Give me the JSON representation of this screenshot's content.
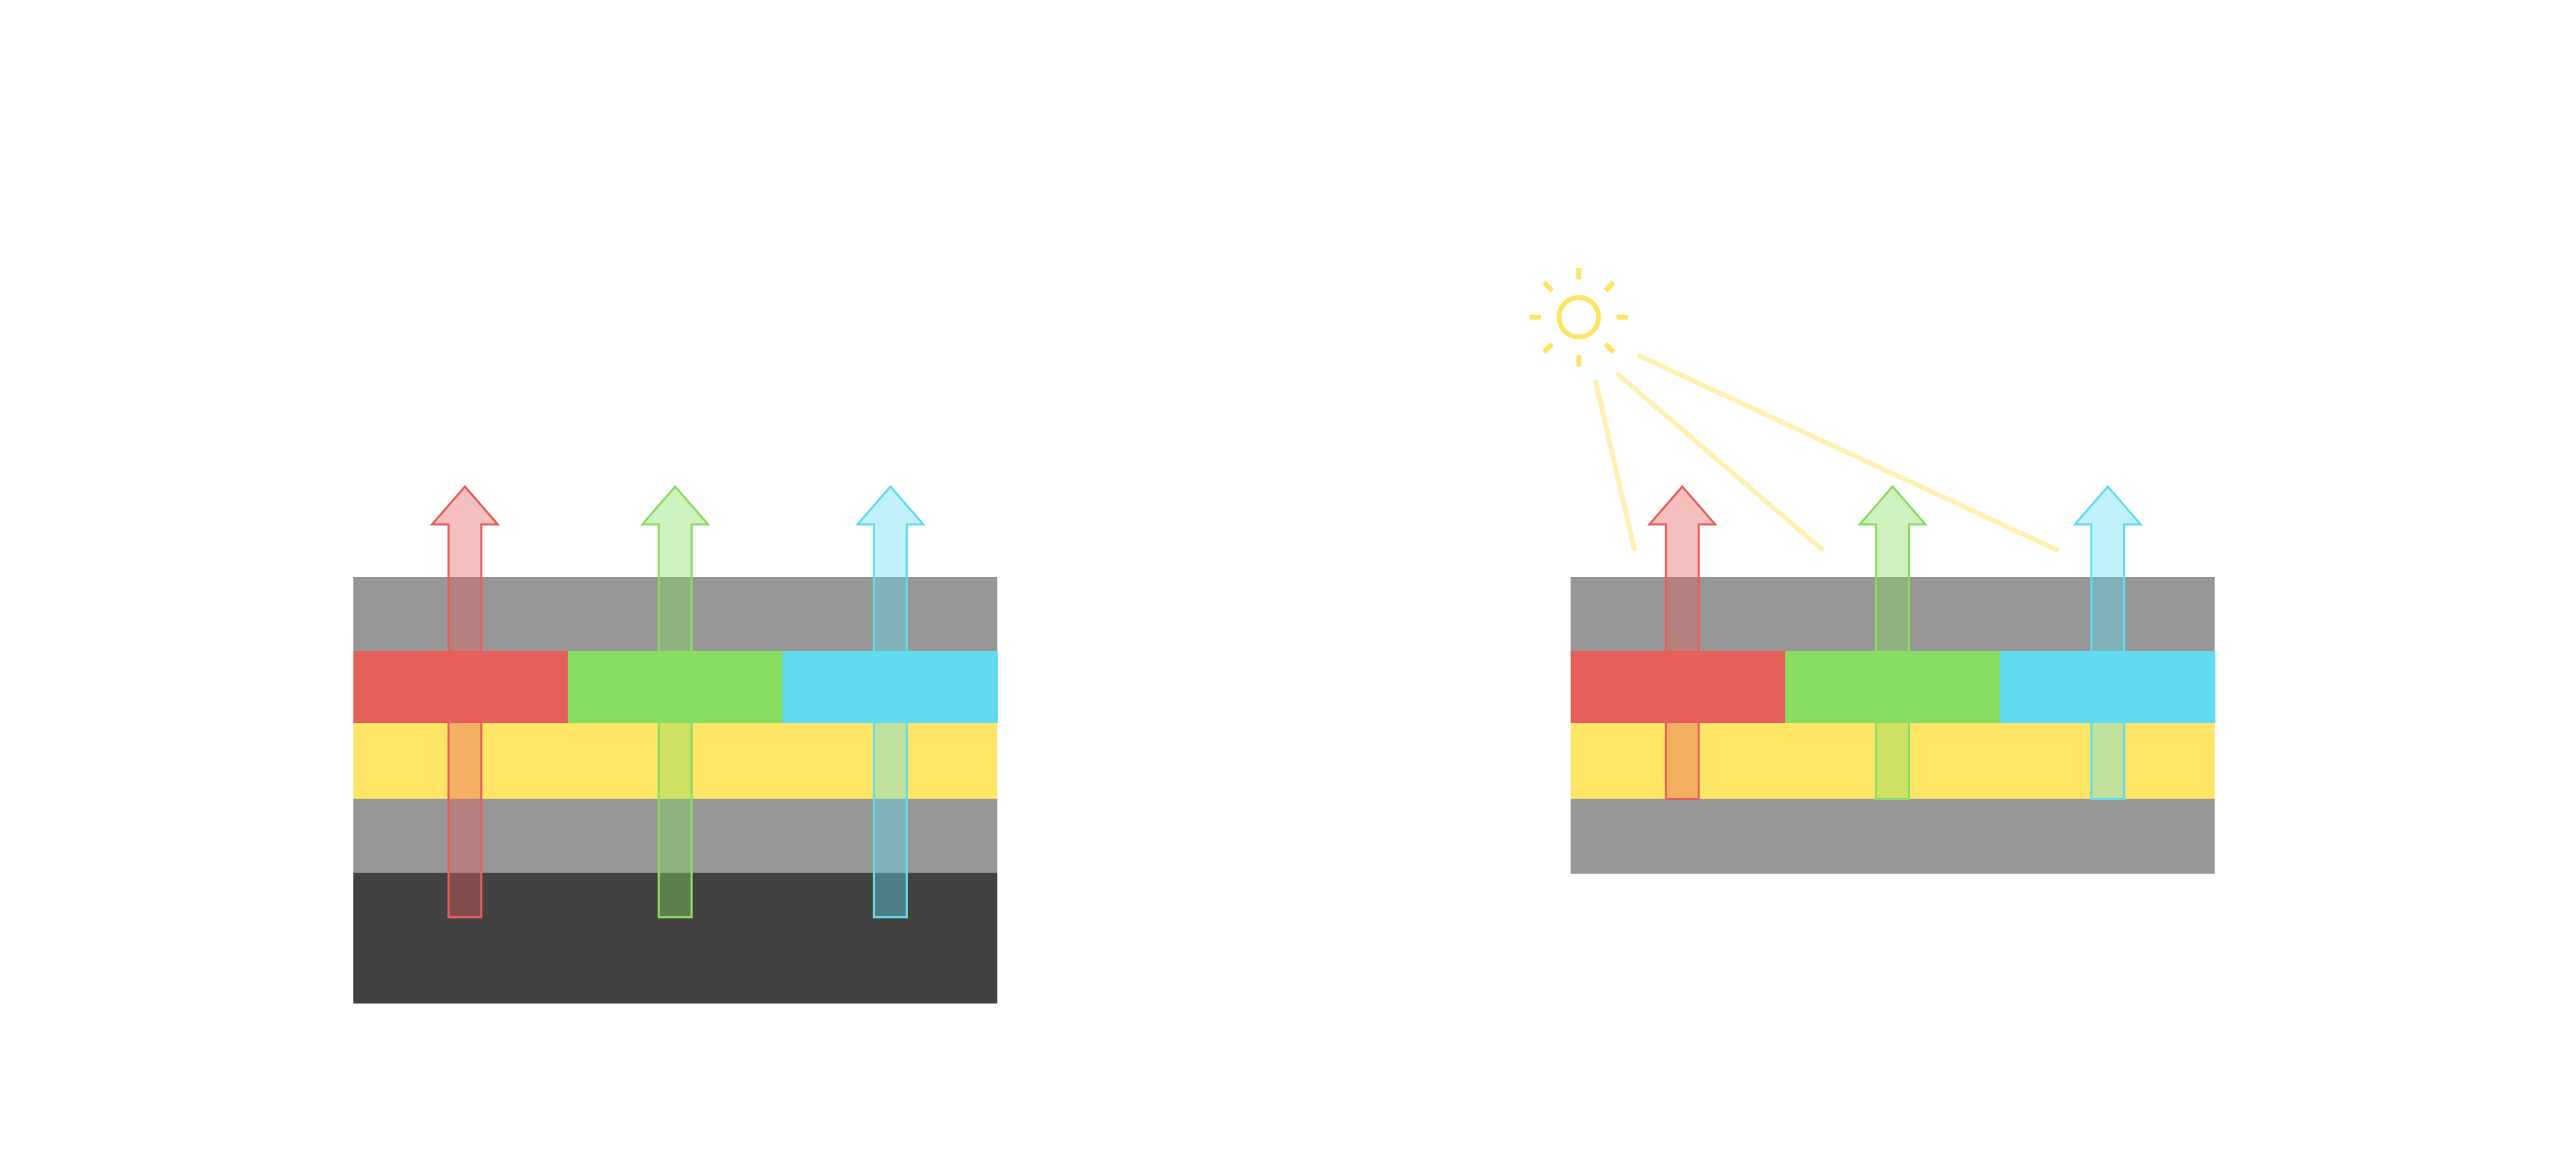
{
  "colors": {
    "background": "#ffffff",
    "gray_layer": "#979797",
    "dark_layer": "#424242",
    "red": "#e6605b",
    "green": "#88dd62",
    "cyan": "#63dbee",
    "yellow": "#fee566",
    "light_ray": "#fff0b3",
    "sun": "#fee566"
  },
  "stacks": [
    {
      "id": "left",
      "layers": [
        "gray",
        "rgb",
        "yellow",
        "gray",
        "dark"
      ],
      "arrows": [
        "red",
        "green",
        "cyan"
      ],
      "arrows_extend_to": "dark"
    },
    {
      "id": "right",
      "layers": [
        "gray",
        "rgb",
        "yellow",
        "gray"
      ],
      "arrows": [
        "red",
        "green",
        "cyan"
      ],
      "arrows_extend_to": "yellow",
      "light_source": "sun-icon",
      "light_rays": 3
    }
  ]
}
